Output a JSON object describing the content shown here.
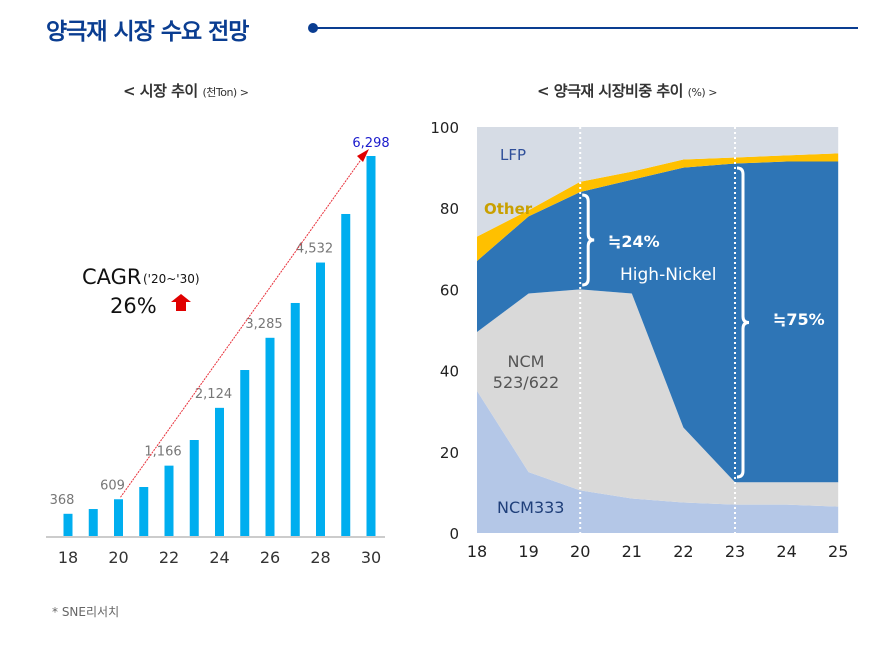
{
  "header": {
    "title": "양극재 시장 수요 전망"
  },
  "footnote": "* SNE리서치",
  "colors": {
    "title": "#0a3d91",
    "bar": "#00aeef",
    "last_label": "#1a1acc",
    "ncm333": "#b4c7e7",
    "ncm523_622": "#d9d9d9",
    "high_nickel": "#2e75b6",
    "other": "#ffc000",
    "lfp": "#d6dce5"
  },
  "chart_data": [
    {
      "type": "bar",
      "title": "< 시장 추이",
      "unit": "(천Ton) >",
      "categories": [
        "18",
        "19",
        "20",
        "21",
        "22",
        "23",
        "24",
        "25",
        "26",
        "27",
        "28",
        "29",
        "30"
      ],
      "tick_labels": [
        "18",
        "20",
        "22",
        "24",
        "26",
        "28",
        "30"
      ],
      "values": [
        368,
        447,
        609,
        812,
        1166,
        1591,
        2124,
        2751,
        3285,
        3862,
        4532,
        5337,
        6298
      ],
      "data_labels": {
        "18": "368",
        "20": "609",
        "22": "1,166",
        "24": "2,124",
        "26": "3,285",
        "28": "4,532",
        "30": "6,298"
      },
      "annotation": {
        "cagr_label": "CAGR",
        "cagr_period": "('20~'30)",
        "cagr_value": "26%"
      },
      "ylim": [
        0,
        6298
      ],
      "grid": false
    },
    {
      "type": "area",
      "stacked": true,
      "title": "< 양극재 시장비중 추이",
      "unit": "(%) >",
      "x": [
        "18",
        "19",
        "20",
        "21",
        "22",
        "23",
        "24",
        "25"
      ],
      "y_ticks": [
        "0",
        "20",
        "40",
        "60",
        "80",
        "100"
      ],
      "ylim": [
        0,
        100
      ],
      "series": [
        {
          "name": "NCM333",
          "values": [
            35,
            15,
            10.5,
            8.5,
            7.5,
            7,
            7,
            6.5
          ]
        },
        {
          "name": "NCM 523/622",
          "values": [
            14.5,
            44,
            49.5,
            50.5,
            18.5,
            5.5,
            5.5,
            6
          ]
        },
        {
          "name": "High-Nickel",
          "values": [
            17.5,
            19,
            24,
            28,
            64,
            78.5,
            79,
            79
          ]
        },
        {
          "name": "Other",
          "values": [
            6,
            1.5,
            2.5,
            2,
            2,
            1.5,
            1.5,
            2
          ]
        },
        {
          "name": "LFP",
          "values": [
            27,
            20.5,
            13.5,
            11,
            8,
            7.5,
            7,
            6.5
          ]
        }
      ],
      "annotations": [
        {
          "x": "20",
          "text": "≒24%"
        },
        {
          "x": "23",
          "text": "≒75%"
        }
      ]
    }
  ]
}
